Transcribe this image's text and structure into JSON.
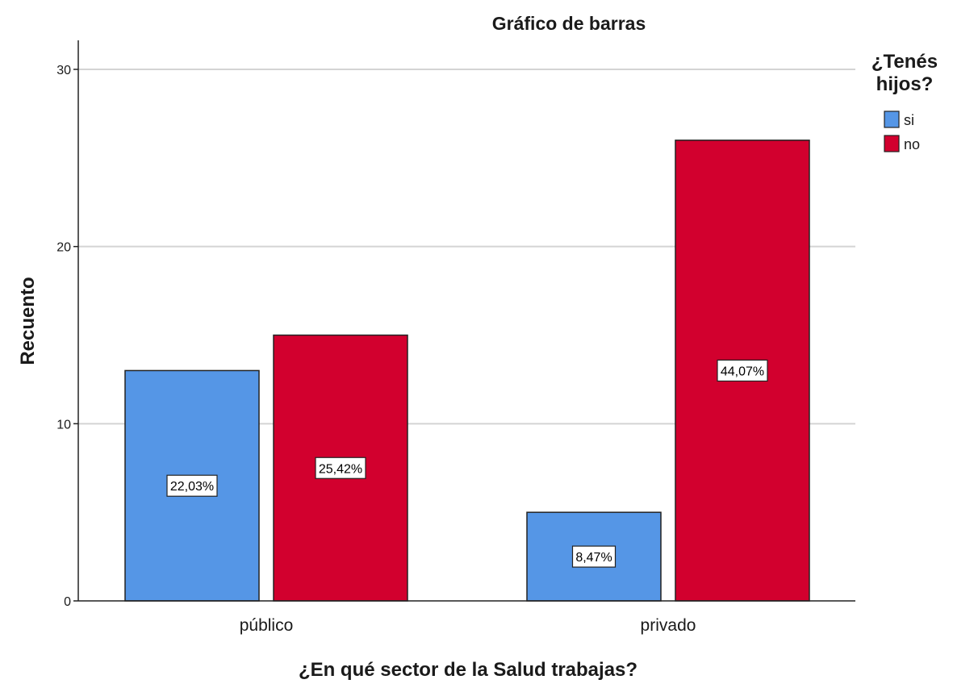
{
  "chart_data": {
    "type": "bar",
    "title": "Gráfico de barras",
    "xlabel": "¿En qué sector de la Salud trabajas?",
    "ylabel": "Recuento",
    "categories": [
      "público",
      "privado"
    ],
    "ylim": [
      0,
      30
    ],
    "yticks": [
      "0",
      "10",
      "20",
      "30"
    ],
    "grid": true,
    "legend": {
      "title_lines": [
        "¿Tenés",
        "hijos?"
      ],
      "placement": "top-right"
    },
    "series": [
      {
        "name": "si",
        "color": "#5596e6",
        "values": [
          13,
          5
        ],
        "labels": [
          "22,03%",
          "8,47%"
        ]
      },
      {
        "name": "no",
        "color": "#d2002e",
        "values": [
          15,
          26
        ],
        "labels": [
          "25,42%",
          "44,07%"
        ]
      }
    ]
  }
}
